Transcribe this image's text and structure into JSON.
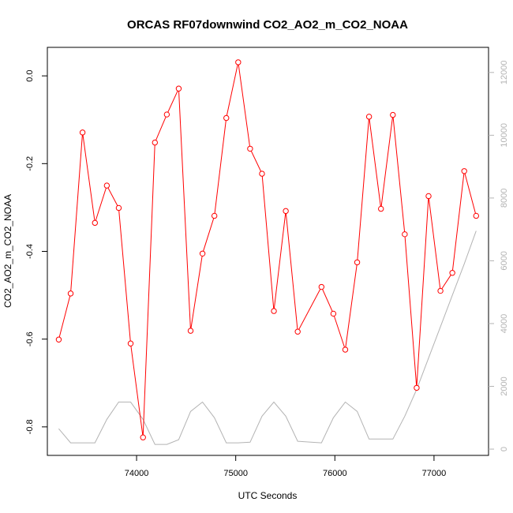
{
  "chart_data": {
    "type": "line",
    "title": "ORCAS RF07downwind CO2_AO2_m_CO2_NOAA",
    "xlabel": "UTC Seconds",
    "ylabel": "CO2_AO2_m_CO2_NOAA",
    "xlim": [
      73100,
      77550
    ],
    "ylim": [
      -0.865,
      0.065
    ],
    "y2lim": [
      -200,
      12800
    ],
    "x_ticks": [
      74000,
      75000,
      76000,
      77000
    ],
    "x_tick_labels": [
      "74000",
      "75000",
      "76000",
      "77000"
    ],
    "y_ticks": [
      0.0,
      -0.2,
      -0.4,
      -0.6,
      -0.8
    ],
    "y_tick_labels": [
      "0.0",
      "-0.2",
      "-0.4",
      "-0.6",
      "-0.8"
    ],
    "y2_ticks": [
      0,
      2000,
      4000,
      6000,
      8000,
      10000,
      12000
    ],
    "y2_tick_labels": [
      "0",
      "2000",
      "4000",
      "6000",
      "8000",
      "10000",
      "12000"
    ],
    "grid": false,
    "series": [
      {
        "color": "#ff0000",
        "axis": "left",
        "markers": "open-circle",
        "x": [
          73215,
          73335,
          73455,
          73580,
          73700,
          73820,
          73940,
          74065,
          74185,
          74305,
          74425,
          74545,
          74665,
          74785,
          74905,
          75025,
          75145,
          75265,
          75385,
          75505,
          75625,
          75865,
          75985,
          76105,
          76225,
          76345,
          76465,
          76585,
          76705,
          76825,
          76945,
          77065,
          77185,
          77305,
          77425
        ],
        "values": [
          -0.601,
          -0.496,
          -0.129,
          -0.335,
          -0.25,
          -0.301,
          -0.61,
          -0.824,
          -0.152,
          -0.088,
          -0.029,
          -0.581,
          -0.405,
          -0.319,
          -0.096,
          0.031,
          -0.166,
          -0.223,
          -0.536,
          -0.308,
          -0.583,
          -0.481,
          -0.542,
          -0.624,
          -0.425,
          -0.093,
          -0.303,
          -0.089,
          -0.361,
          -0.711,
          -0.274,
          -0.49,
          -0.449,
          -0.217,
          -0.319
        ]
      },
      {
        "color": "#b3b3b3",
        "axis": "right",
        "markers": "none",
        "x": [
          73215,
          73335,
          73455,
          73580,
          73700,
          73820,
          73940,
          74065,
          74185,
          74305,
          74425,
          74545,
          74665,
          74785,
          74905,
          75025,
          75145,
          75265,
          75385,
          75505,
          75625,
          75865,
          75985,
          76105,
          76225,
          76345,
          76465,
          76585,
          76705,
          76825,
          76945,
          77065,
          77185,
          77305,
          77425
        ],
        "values": [
          650,
          200,
          200,
          200,
          950,
          1500,
          1500,
          950,
          150,
          150,
          300,
          1200,
          1500,
          1000,
          200,
          200,
          220,
          1050,
          1500,
          1050,
          250,
          200,
          1000,
          1500,
          1200,
          320,
          320,
          320,
          1050,
          1900,
          2900,
          3900,
          4900,
          5900,
          6950
        ]
      }
    ]
  }
}
